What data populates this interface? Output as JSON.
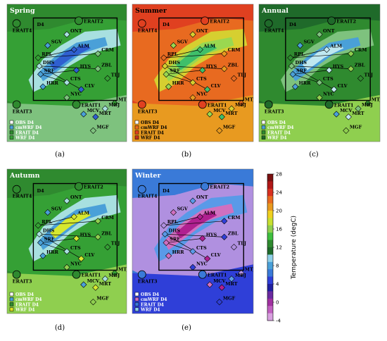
{
  "panels": [
    {
      "id": "a",
      "season": "Spring",
      "caption": "(a)",
      "bg": "#2f8a2f",
      "land": "#35a035",
      "low": "#7ec27e",
      "mid": "#a8e0e0",
      "high": "#4aa0d8",
      "peak": "#2f5fd0",
      "legend": [
        "OBS D4",
        "cmWRF D4",
        "ERAIT D4",
        "WRF D4"
      ],
      "legend_colors": [
        "#ffffff",
        "#4aa0d8",
        "#2f8a2f",
        "#35a035"
      ]
    },
    {
      "id": "b",
      "season": "Summer",
      "caption": "(b)",
      "bg": "#e04020",
      "land": "#e86a20",
      "low": "#e89a20",
      "mid": "#d6cf30",
      "high": "#9ad850",
      "peak": "#3fbf6a",
      "legend": [
        "OBS D4",
        "cmWRF D4",
        "ERAIT D4",
        "WRF D4"
      ],
      "legend_colors": [
        "#ffffff",
        "#e86a20",
        "#e04020",
        "#c03020"
      ]
    },
    {
      "id": "c",
      "season": "Annual",
      "caption": "(c)",
      "bg": "#1f6a2a",
      "land": "#2f8a2f",
      "low": "#8fcf4f",
      "mid": "#7ec27e",
      "high": "#4aa0d8",
      "peak": "#bfe8f0",
      "legend": [
        "OBS D4",
        "cmWRF D4",
        "ERAIT D4",
        "WRF D4"
      ],
      "legend_colors": [
        "#ffffff",
        "#4aa0d8",
        "#2f8a2f",
        "#1f6a2a"
      ]
    },
    {
      "id": "d",
      "season": "Autumn",
      "caption": "(d)",
      "bg": "#2f8a2f",
      "land": "#35a035",
      "low": "#8fcf4f",
      "mid": "#a8e0e0",
      "high": "#4aa0d8",
      "peak": "#d6e830",
      "legend": [
        "OBS D4",
        "cmWRF D4",
        "ERAIT D4",
        "WRF D4"
      ],
      "legend_colors": [
        "#ffffff",
        "#4aa0d8",
        "#2f8a2f",
        "#e0e020"
      ]
    },
    {
      "id": "e",
      "season": "Winter",
      "caption": "(e)",
      "bg": "#3a7ad8",
      "land": "#b090e0",
      "low": "#2f3fd8",
      "mid": "#5a9ae8",
      "high": "#d070c0",
      "peak": "#b02090",
      "legend": [
        "OBS D4",
        "cmWRF D4",
        "ERAIT D4",
        "WRF D4"
      ],
      "legend_colors": [
        "#ffffff",
        "#d070c0",
        "#3a7ad8",
        "#8fd0e8"
      ]
    }
  ],
  "stations": [
    {
      "name": "ONT",
      "type": "diamond"
    },
    {
      "name": "SGV",
      "type": "diamond"
    },
    {
      "name": "ALM",
      "type": "diamond"
    },
    {
      "name": "CRM",
      "type": "diamond"
    },
    {
      "name": "RPL",
      "type": "diamond"
    },
    {
      "name": "DHS",
      "type": "diamond"
    },
    {
      "name": "SRF",
      "type": "diamond"
    },
    {
      "name": "HYS",
      "type": "diamond"
    },
    {
      "name": "ZBL",
      "type": "diamond"
    },
    {
      "name": "TLJ",
      "type": "diamond"
    },
    {
      "name": "CTS",
      "type": "diamond"
    },
    {
      "name": "HRR",
      "type": "diamond"
    },
    {
      "name": "CLV",
      "type": "diamond"
    },
    {
      "name": "NYC",
      "type": "diamond"
    },
    {
      "name": "MTJ",
      "type": "diamond"
    },
    {
      "name": "MBJ",
      "type": "diamond"
    },
    {
      "name": "MCV",
      "type": "diamond"
    },
    {
      "name": "MRT",
      "type": "diamond"
    },
    {
      "name": "MGF",
      "type": "diamond"
    }
  ],
  "erait_points": [
    "ERAIT2",
    "ERAIT4",
    "ERAIT3",
    "ERAIT1"
  ],
  "domain_label": "D4",
  "colorbar": {
    "title": "Temperature (degC)",
    "ticks": [
      "28",
      "24",
      "20",
      "16",
      "12",
      "8",
      "4",
      "0",
      "-4"
    ],
    "colors": [
      "#7a1010",
      "#b01818",
      "#d83020",
      "#e86a20",
      "#e89a20",
      "#f0d020",
      "#c8e030",
      "#8fcf4f",
      "#3fbf3f",
      "#2f8a2f",
      "#1f6a2a",
      "#8fd0e8",
      "#4aa0d8",
      "#3a7ad8",
      "#2f3fd8",
      "#2020a0",
      "#6a2aa0",
      "#a030a0",
      "#c060c0",
      "#d8a0e0"
    ]
  }
}
